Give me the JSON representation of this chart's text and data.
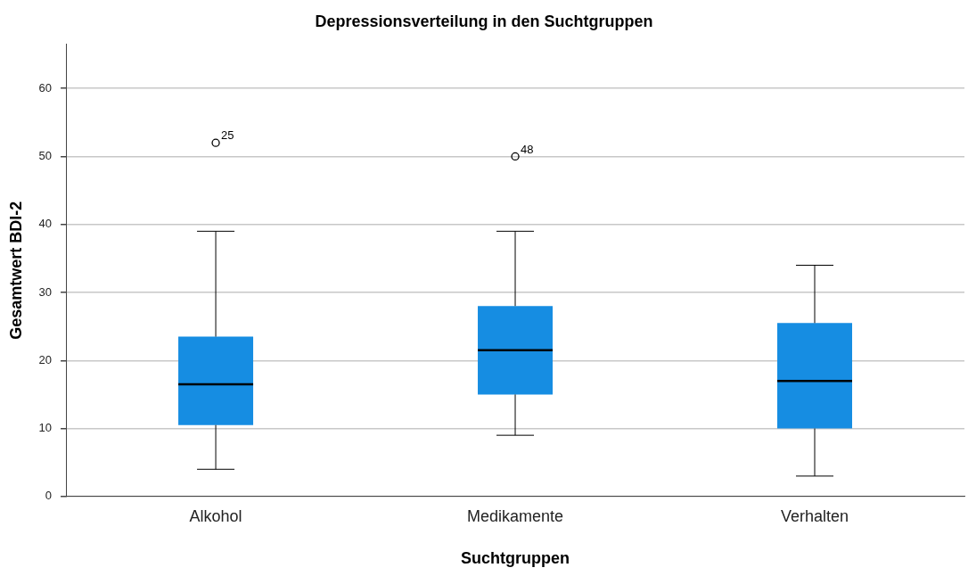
{
  "chart_data": {
    "type": "box",
    "title": "Depressionsverteilung in den Suchtgruppen",
    "xlabel": "Suchtgruppen",
    "ylabel": "Gesamtwert BDI-2",
    "categories": [
      "Alkohol",
      "Medikamente",
      "Verhalten"
    ],
    "series": [
      {
        "color": "#168de2",
        "boxes": [
          {
            "low": 4,
            "q1": 10.5,
            "median": 16.5,
            "q3": 23.5,
            "high": 39,
            "outliers": [
              52
            ]
          },
          {
            "low": 9,
            "q1": 15,
            "median": 21.5,
            "q3": 28,
            "high": 39,
            "outliers": [
              50
            ]
          },
          {
            "low": 3,
            "q1": 10,
            "median": 17,
            "q3": 25.5,
            "high": 34
          }
        ]
      }
    ],
    "ylim": [
      0,
      66.5
    ],
    "yticks": [
      0,
      10,
      20,
      30,
      40,
      50,
      60
    ],
    "grid": "y",
    "legend": false,
    "annotations": [
      "25",
      "48"
    ]
  }
}
